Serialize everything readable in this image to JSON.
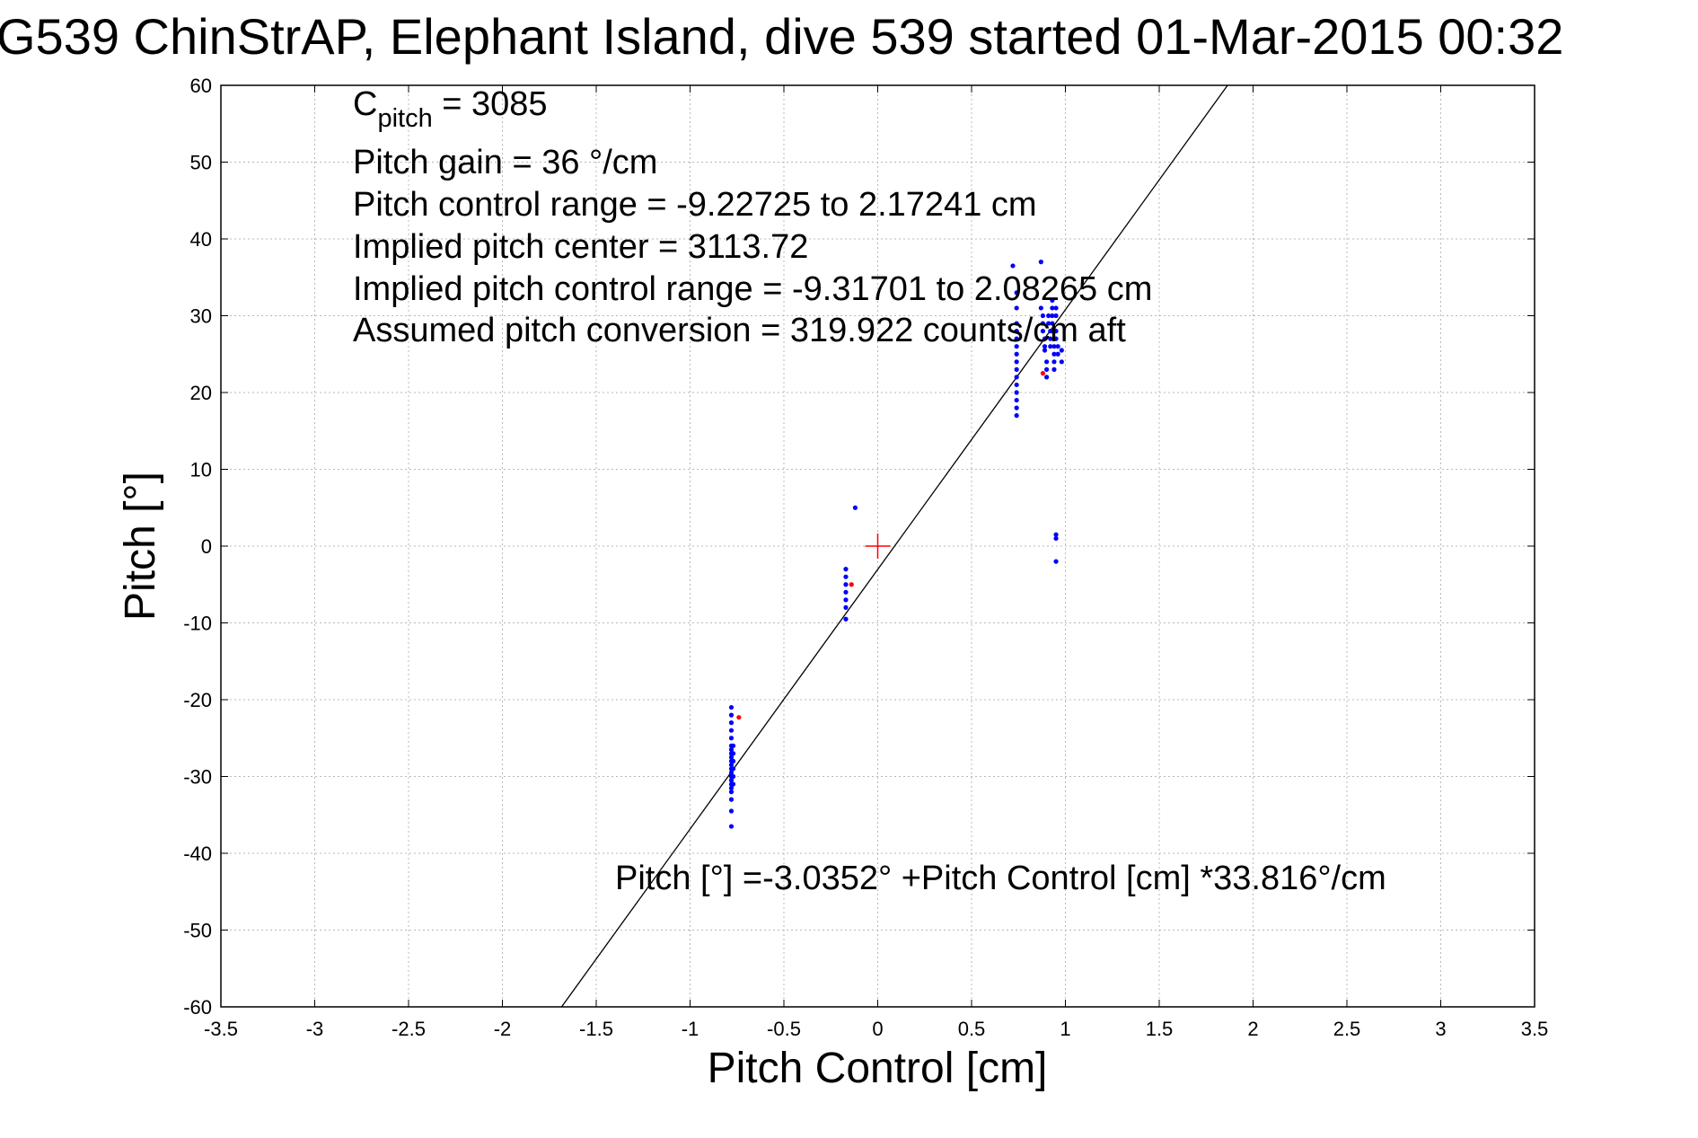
{
  "chart_data": {
    "type": "scatter",
    "title": "G539 ChinStrAP, Elephant Island, dive 539 started 01-Mar-2015 00:32",
    "xlabel": "Pitch Control [cm]",
    "ylabel": "Pitch [°]",
    "xlim": [
      -3.5,
      3.5
    ],
    "ylim": [
      -60,
      60
    ],
    "xticks": [
      -3.5,
      -3,
      -2.5,
      -2,
      -1.5,
      -1,
      -0.5,
      0,
      0.5,
      1,
      1.5,
      2,
      2.5,
      3,
      3.5
    ],
    "xtick_labels": [
      "-3.5",
      "-3",
      "-2.5",
      "-2",
      "-1.5",
      "-1",
      "-0.5",
      "0",
      "0.5",
      "1",
      "1.5",
      "2",
      "2.5",
      "3",
      "3.5"
    ],
    "yticks": [
      60,
      50,
      40,
      30,
      20,
      10,
      0,
      -10,
      -20,
      -30,
      -40,
      -50,
      -60
    ],
    "ytick_labels": [
      "60",
      "50",
      "40",
      "30",
      "20",
      "10",
      "0",
      "-10",
      "-20",
      "-30",
      "-40",
      "-50",
      "-60"
    ],
    "grid": true,
    "annotations": {
      "c_pitch_main": "C",
      "c_pitch_sub": "pitch",
      "c_pitch_value": " = 3085",
      "pitch_gain": "Pitch gain = 36 °/cm",
      "control_range": "Pitch control range = -9.22725 to 2.17241 cm",
      "implied_center": "Implied pitch center = 3113.72",
      "implied_range": "Implied pitch control range = -9.31701 to 2.08265 cm",
      "conversion": "Assumed pitch conversion = 319.922 counts/cm aft",
      "fit_equation": "Pitch [°] =-3.0352° +Pitch Control [cm] *33.816°/cm"
    },
    "fit_line": {
      "intercept": -3.0352,
      "slope": 33.816
    },
    "center_marker": {
      "x": 0,
      "y": 0
    },
    "colors": {
      "points": "#0000ff",
      "outliers": "#ff0000",
      "fit_line": "#000000",
      "center_marker": "#ff0000",
      "grid": "#b8b8b8"
    },
    "series": [
      {
        "color": "#0000ff",
        "points": [
          [
            -0.78,
            -21
          ],
          [
            -0.78,
            -22
          ],
          [
            -0.78,
            -23
          ],
          [
            -0.78,
            -24
          ],
          [
            -0.78,
            -25
          ],
          [
            -0.78,
            -26
          ],
          [
            -0.78,
            -26.5
          ],
          [
            -0.78,
            -27
          ],
          [
            -0.78,
            -27.5
          ],
          [
            -0.78,
            -28
          ],
          [
            -0.78,
            -28.5
          ],
          [
            -0.78,
            -29
          ],
          [
            -0.78,
            -29.5
          ],
          [
            -0.78,
            -30
          ],
          [
            -0.78,
            -30.5
          ],
          [
            -0.78,
            -31
          ],
          [
            -0.78,
            -31.5
          ],
          [
            -0.78,
            -32
          ],
          [
            -0.78,
            -33
          ],
          [
            -0.78,
            -34.5
          ],
          [
            -0.78,
            -36.5
          ],
          [
            -0.77,
            -26
          ],
          [
            -0.77,
            -27
          ],
          [
            -0.77,
            -28
          ],
          [
            -0.77,
            -29
          ],
          [
            -0.77,
            -30
          ],
          [
            -0.77,
            -31
          ],
          [
            -0.17,
            -3
          ],
          [
            -0.17,
            -4
          ],
          [
            -0.17,
            -5
          ],
          [
            -0.17,
            -6
          ],
          [
            -0.17,
            -7
          ],
          [
            -0.17,
            -8
          ],
          [
            -0.17,
            -9.5
          ],
          [
            -0.12,
            5
          ],
          [
            0.72,
            36.5
          ],
          [
            0.74,
            33
          ],
          [
            0.74,
            31
          ],
          [
            0.74,
            29
          ],
          [
            0.74,
            28
          ],
          [
            0.74,
            27
          ],
          [
            0.74,
            26
          ],
          [
            0.74,
            25
          ],
          [
            0.74,
            24
          ],
          [
            0.74,
            23
          ],
          [
            0.74,
            22
          ],
          [
            0.74,
            21
          ],
          [
            0.74,
            20
          ],
          [
            0.74,
            19
          ],
          [
            0.74,
            18
          ],
          [
            0.74,
            17
          ],
          [
            0.87,
            37
          ],
          [
            0.87,
            31
          ],
          [
            0.88,
            30
          ],
          [
            0.88,
            29
          ],
          [
            0.88,
            28
          ],
          [
            0.89,
            27
          ],
          [
            0.89,
            26
          ],
          [
            0.89,
            25.5
          ],
          [
            0.9,
            24
          ],
          [
            0.9,
            23
          ],
          [
            0.9,
            22
          ],
          [
            0.91,
            30
          ],
          [
            0.91,
            29
          ],
          [
            0.92,
            28
          ],
          [
            0.92,
            27
          ],
          [
            0.92,
            26
          ],
          [
            0.93,
            32
          ],
          [
            0.93,
            31
          ],
          [
            0.93,
            30
          ],
          [
            0.93,
            29
          ],
          [
            0.93,
            28
          ],
          [
            0.94,
            27
          ],
          [
            0.94,
            26
          ],
          [
            0.94,
            25
          ],
          [
            0.94,
            24
          ],
          [
            0.94,
            23
          ],
          [
            0.95,
            31
          ],
          [
            0.95,
            30
          ],
          [
            0.95,
            28
          ],
          [
            0.95,
            27
          ],
          [
            0.96,
            26
          ],
          [
            0.96,
            25
          ],
          [
            0.98,
            25.5
          ],
          [
            0.98,
            24
          ],
          [
            0.95,
            1.5
          ],
          [
            0.95,
            1
          ],
          [
            0.95,
            -2
          ]
        ]
      },
      {
        "color": "#ff0000",
        "points": [
          [
            -0.74,
            -22.3
          ],
          [
            -0.14,
            -5
          ],
          [
            0.88,
            22.5
          ]
        ]
      }
    ]
  }
}
